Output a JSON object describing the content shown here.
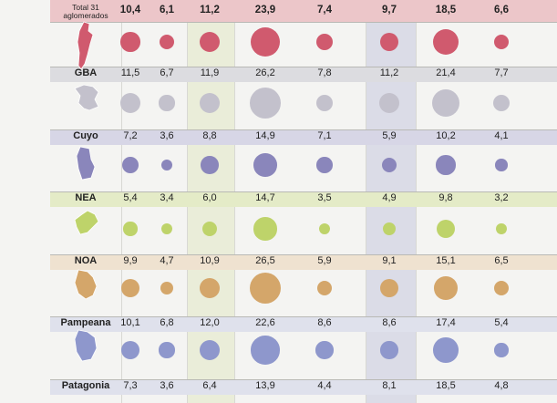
{
  "colors": {
    "total": "#d05a6e",
    "gba": "#c3c1cc",
    "cuyo": "#8a86bb",
    "nea": "#bed36a",
    "noa": "#d4a66a",
    "pampeana": "#8e97cc",
    "patagonia": "#7f8fbf"
  },
  "chart_data": {
    "type": "table",
    "rows": [
      {
        "label": "Total 31 aglomerados",
        "key": "total",
        "values": [
          "10,4",
          "6,1",
          "11,2",
          "23,9",
          "7,4",
          "9,7",
          "18,5",
          "6,6"
        ],
        "numeric": [
          10.4,
          6.1,
          11.2,
          23.9,
          7.4,
          9.7,
          18.5,
          6.6
        ]
      },
      {
        "label": "GBA",
        "key": "gba",
        "values": [
          "11,5",
          "6,7",
          "11,9",
          "26,2",
          "7,8",
          "11,2",
          "21,4",
          "7,7"
        ],
        "numeric": [
          11.5,
          6.7,
          11.9,
          26.2,
          7.8,
          11.2,
          21.4,
          7.7
        ]
      },
      {
        "label": "Cuyo",
        "key": "cuyo",
        "values": [
          "7,2",
          "3,6",
          "8,8",
          "14,9",
          "7,1",
          "5,9",
          "10,2",
          "4,1"
        ],
        "numeric": [
          7.2,
          3.6,
          8.8,
          14.9,
          7.1,
          5.9,
          10.2,
          4.1
        ]
      },
      {
        "label": "NEA",
        "key": "nea",
        "values": [
          "5,4",
          "3,4",
          "6,0",
          "14,7",
          "3,5",
          "4,9",
          "9,8",
          "3,2"
        ],
        "numeric": [
          5.4,
          3.4,
          6.0,
          14.7,
          3.5,
          4.9,
          9.8,
          3.2
        ]
      },
      {
        "label": "NOA",
        "key": "noa",
        "values": [
          "9,9",
          "4,7",
          "10,9",
          "26,5",
          "5,9",
          "9,1",
          "15,1",
          "6,5"
        ],
        "numeric": [
          9.9,
          4.7,
          10.9,
          26.5,
          5.9,
          9.1,
          15.1,
          6.5
        ]
      },
      {
        "label": "Pampeana",
        "key": "pampeana",
        "values": [
          "10,1",
          "6,8",
          "12,0",
          "22,6",
          "8,6",
          "8,6",
          "17,4",
          "5,4"
        ],
        "numeric": [
          10.1,
          6.8,
          12.0,
          22.6,
          8.6,
          8.6,
          17.4,
          5.4
        ]
      },
      {
        "label": "Patagonia",
        "key": "patagonia",
        "values": [
          "7,3",
          "3,6",
          "6,4",
          "13,9",
          "4,4",
          "8,1",
          "18,5",
          "4,8"
        ],
        "numeric": [
          7.3,
          3.6,
          6.4,
          13.9,
          4.4,
          8.1,
          18.5,
          4.8
        ]
      }
    ]
  }
}
